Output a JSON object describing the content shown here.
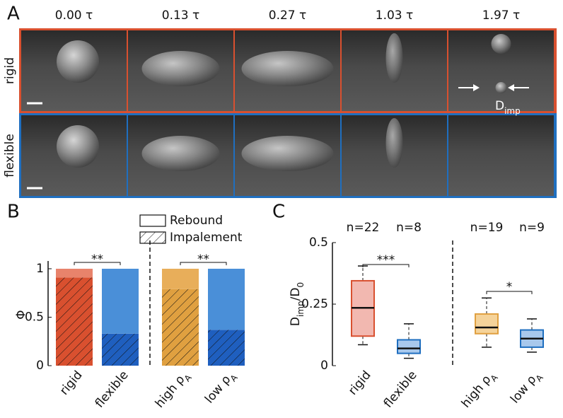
{
  "panel_a": {
    "label": "A",
    "times": [
      "0.00 τ",
      "0.13 τ",
      "0.27 τ",
      "1.03 τ",
      "1.97 τ"
    ],
    "rows": [
      "rigid",
      "flexible"
    ],
    "row_colors": [
      "#d9502f",
      "#1f6fc0"
    ],
    "annotation": [
      "D",
      "imp"
    ]
  },
  "chart_data": [
    {
      "type": "stacked_bar",
      "label": "B",
      "ylabel": "Φ",
      "categories": [
        [
          "rigid"
        ],
        [
          "flexible"
        ],
        [
          "high ρ",
          "A"
        ],
        [
          "low ρ",
          "A"
        ]
      ],
      "series": [
        {
          "name": "Impalement",
          "hatch": true,
          "colors": [
            "#d9502f",
            "#1f5fbf",
            "#e0a040",
            "#1f5fbf"
          ],
          "values": [
            0.91,
            0.33,
            0.79,
            0.37
          ]
        },
        {
          "name": "Rebound",
          "hatch": false,
          "colors": [
            "#e8836b",
            "#4a8fd8",
            "#e8ae5a",
            "#4a8fd8"
          ],
          "values": [
            0.09,
            0.67,
            0.21,
            0.63
          ]
        }
      ],
      "ylim": [
        0,
        1.08
      ],
      "yticks": [
        0,
        0.5,
        1
      ],
      "significance": [
        {
          "pair": [
            0,
            1
          ],
          "text": "**"
        },
        {
          "pair": [
            2,
            3
          ],
          "text": "**"
        }
      ]
    },
    {
      "type": "box",
      "label": "C",
      "ylabel": [
        "D",
        "imp",
        "/D",
        "0"
      ],
      "categories": [
        [
          "rigid"
        ],
        [
          "flexible"
        ],
        [
          "high ρ",
          "A"
        ],
        [
          "low ρ",
          "A"
        ]
      ],
      "counts": [
        "n=22",
        "n=8",
        "n=19",
        "n=9"
      ],
      "fills": [
        "#f2b8b0",
        "#a8c8ec",
        "#f5d39a",
        "#a8c8ec"
      ],
      "strokes": [
        "#d9502f",
        "#1f6fc0",
        "#e0a040",
        "#1f6fc0"
      ],
      "boxes": [
        {
          "whisker_low": 0.085,
          "q1": 0.12,
          "median": 0.235,
          "q3": 0.345,
          "whisker_high": 0.405
        },
        {
          "whisker_low": 0.03,
          "q1": 0.05,
          "median": 0.07,
          "q3": 0.105,
          "whisker_high": 0.17
        },
        {
          "whisker_low": 0.075,
          "q1": 0.13,
          "median": 0.155,
          "q3": 0.21,
          "whisker_high": 0.275
        },
        {
          "whisker_low": 0.055,
          "q1": 0.075,
          "median": 0.11,
          "q3": 0.145,
          "whisker_high": 0.19
        }
      ],
      "ylim": [
        0,
        0.5
      ],
      "yticks": [
        0,
        0.25,
        0.5
      ],
      "significance": [
        {
          "pair": [
            0,
            1
          ],
          "text": "***"
        },
        {
          "pair": [
            2,
            3
          ],
          "text": "*"
        }
      ]
    }
  ]
}
